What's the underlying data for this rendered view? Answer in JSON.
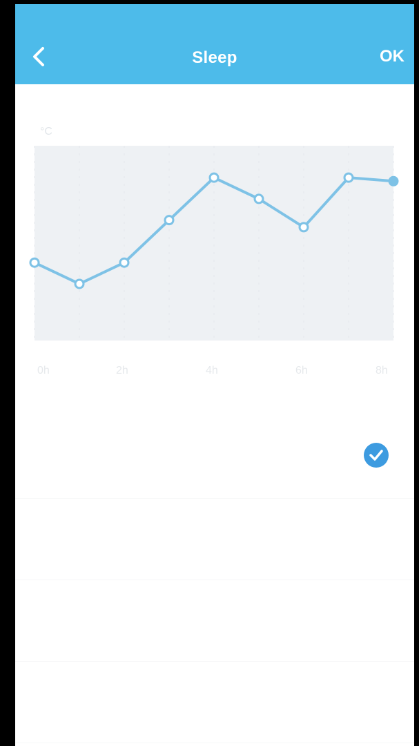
{
  "header": {
    "back_icon": "chevron-left-icon",
    "title": "Sleep",
    "ok_label": "OK",
    "color": "#4dbbea"
  },
  "chart_data": {
    "type": "line",
    "unit_label": "°C",
    "x_tick_labels": [
      "0h",
      "2h",
      "4h",
      "6h",
      "8h"
    ],
    "x": [
      0,
      1,
      2,
      3,
      4,
      5,
      6,
      7,
      8
    ],
    "series": [
      {
        "values": [
          25.2,
          24.6,
          25.2,
          26.4,
          27.6,
          27.0,
          26.2,
          27.6,
          27.5
        ]
      }
    ],
    "ylim": [
      23,
      28.5
    ],
    "grid": true,
    "line_color": "#7ec2e6",
    "plot_background": "#eef1f4"
  },
  "list": {
    "rows": [
      {
        "title": "",
        "subtitle": "",
        "checked": true
      },
      {
        "title": "",
        "subtitle": "",
        "checked": false
      },
      {
        "title": "",
        "subtitle": "",
        "checked": false
      },
      {
        "title": "",
        "subtitle": "",
        "checked": false
      }
    ],
    "check_color": "#3d9be0"
  }
}
